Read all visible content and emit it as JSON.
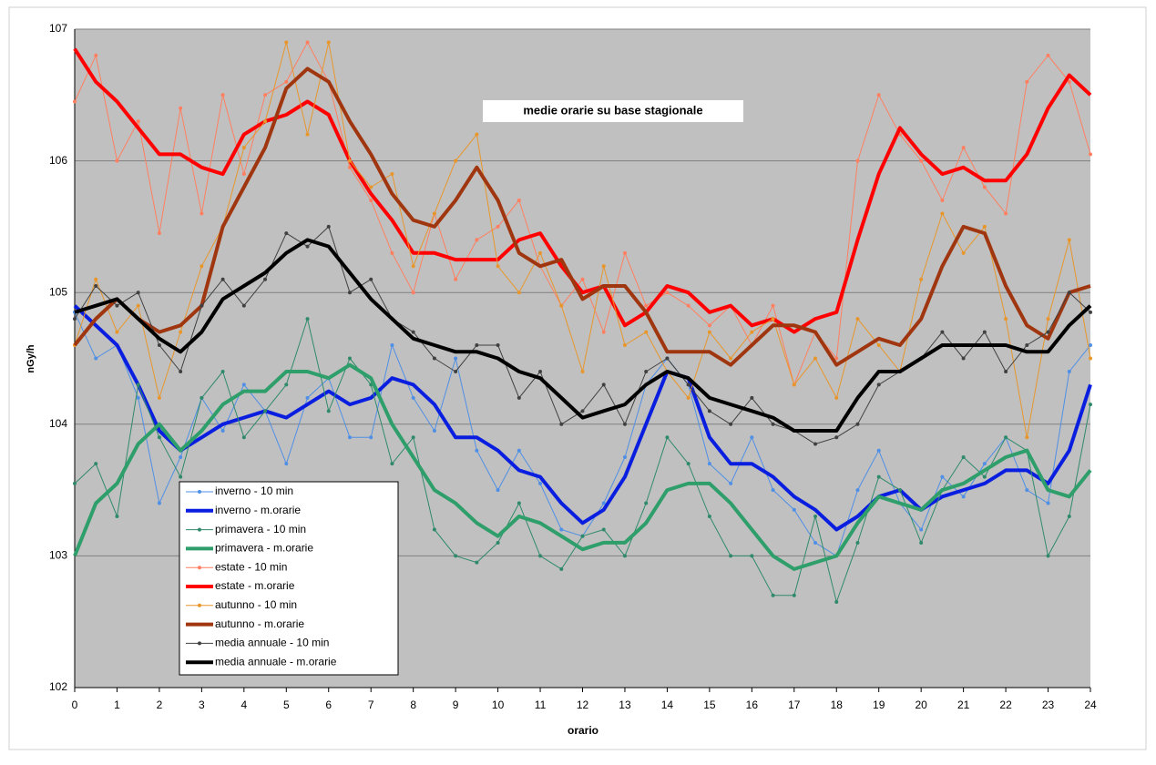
{
  "chart_data": {
    "type": "line",
    "title": "medie orarie su base stagionale",
    "xlabel": "orario",
    "ylabel": "nGy/h",
    "xlim": [
      0,
      24
    ],
    "xticks": [
      0,
      1,
      2,
      3,
      4,
      5,
      6,
      7,
      8,
      9,
      10,
      11,
      12,
      13,
      14,
      15,
      16,
      17,
      18,
      19,
      20,
      21,
      22,
      23,
      24
    ],
    "ylim": [
      102,
      107
    ],
    "yticks": [
      102,
      103,
      104,
      105,
      106,
      107
    ],
    "grid": true,
    "legend": "lower-left",
    "x": [
      0,
      0.5,
      1,
      1.5,
      2,
      2.5,
      3,
      3.5,
      4,
      4.5,
      5,
      5.5,
      6,
      6.5,
      7,
      7.5,
      8,
      8.5,
      9,
      9.5,
      10,
      10.5,
      11,
      11.5,
      12,
      12.5,
      13,
      13.5,
      14,
      14.5,
      15,
      15.5,
      16,
      16.5,
      17,
      17.5,
      18,
      18.5,
      19,
      19.5,
      20,
      20.5,
      21,
      21.5,
      22,
      22.5,
      23,
      23.5,
      24
    ],
    "series": [
      {
        "name": "inverno - 10 min",
        "color": "#4f8fe6",
        "markers": true,
        "values": [
          104.85,
          104.5,
          104.6,
          104.2,
          103.4,
          103.75,
          104.2,
          103.95,
          104.3,
          104.1,
          103.7,
          104.2,
          104.35,
          103.9,
          103.9,
          104.6,
          104.2,
          103.95,
          104.5,
          103.8,
          103.5,
          103.8,
          103.55,
          103.2,
          103.15,
          103.4,
          103.75,
          104.3,
          104.5,
          104.3,
          103.7,
          103.55,
          103.9,
          103.5,
          103.35,
          103.1,
          103.0,
          103.5,
          103.8,
          103.4,
          103.2,
          103.6,
          103.45,
          103.7,
          103.9,
          103.5,
          103.4,
          104.4,
          104.6
        ]
      },
      {
        "name": "inverno - m.orarie",
        "color": "#0a1ee0",
        "markers": false,
        "values": [
          104.9,
          104.75,
          104.6,
          104.3,
          103.95,
          103.8,
          103.9,
          104.0,
          104.05,
          104.1,
          104.05,
          104.15,
          104.25,
          104.15,
          104.2,
          104.35,
          104.3,
          104.15,
          103.9,
          103.9,
          103.8,
          103.65,
          103.6,
          103.4,
          103.25,
          103.35,
          103.6,
          104.0,
          104.4,
          104.35,
          103.9,
          103.7,
          103.7,
          103.6,
          103.45,
          103.35,
          103.2,
          103.3,
          103.45,
          103.5,
          103.35,
          103.45,
          103.5,
          103.55,
          103.65,
          103.65,
          103.55,
          103.8,
          104.3
        ]
      },
      {
        "name": "primavera - 10 min",
        "color": "#2f8a6a",
        "markers": true,
        "values": [
          103.55,
          103.7,
          103.3,
          104.3,
          103.9,
          103.6,
          104.2,
          104.4,
          103.9,
          104.1,
          104.3,
          104.8,
          104.1,
          104.5,
          104.3,
          103.7,
          103.9,
          103.2,
          103.0,
          102.95,
          103.1,
          103.4,
          103.0,
          102.9,
          103.15,
          103.2,
          103.0,
          103.4,
          103.9,
          103.7,
          103.3,
          103.0,
          103.0,
          102.7,
          102.7,
          103.3,
          102.65,
          103.1,
          103.6,
          103.5,
          103.1,
          103.5,
          103.75,
          103.6,
          103.9,
          103.8,
          103.0,
          103.3,
          104.15
        ]
      },
      {
        "name": "primavera - m.orarie",
        "color": "#2e9e6a",
        "markers": false,
        "values": [
          103.0,
          103.4,
          103.55,
          103.85,
          104.0,
          103.8,
          103.95,
          104.15,
          104.25,
          104.25,
          104.4,
          104.4,
          104.35,
          104.45,
          104.35,
          104.0,
          103.75,
          103.5,
          103.4,
          103.25,
          103.15,
          103.3,
          103.25,
          103.15,
          103.05,
          103.1,
          103.1,
          103.25,
          103.5,
          103.55,
          103.55,
          103.4,
          103.2,
          103.0,
          102.9,
          102.95,
          103.0,
          103.25,
          103.45,
          103.4,
          103.35,
          103.5,
          103.55,
          103.65,
          103.75,
          103.8,
          103.5,
          103.45,
          103.65
        ]
      },
      {
        "name": "estate - 10 min",
        "color": "#ff7f60",
        "markers": true,
        "values": [
          106.45,
          106.8,
          106.0,
          106.3,
          105.45,
          106.4,
          105.6,
          106.5,
          105.9,
          106.5,
          106.6,
          106.9,
          106.6,
          105.95,
          105.7,
          105.3,
          105.0,
          105.6,
          105.1,
          105.4,
          105.5,
          105.7,
          105.2,
          104.9,
          105.1,
          104.7,
          105.3,
          104.9,
          105.0,
          104.9,
          104.75,
          104.9,
          104.6,
          104.9,
          104.3,
          104.7,
          104.5,
          106.0,
          106.5,
          106.2,
          106.0,
          105.7,
          106.1,
          105.8,
          105.6,
          106.6,
          106.8,
          106.6,
          106.05
        ]
      },
      {
        "name": "estate - m.orarie",
        "color": "#ff0000",
        "markers": false,
        "values": [
          106.85,
          106.6,
          106.45,
          106.25,
          106.05,
          106.05,
          105.95,
          105.9,
          106.2,
          106.3,
          106.35,
          106.45,
          106.35,
          106.0,
          105.75,
          105.55,
          105.3,
          105.3,
          105.25,
          105.25,
          105.25,
          105.4,
          105.45,
          105.2,
          105.0,
          105.05,
          104.75,
          104.85,
          105.05,
          105.0,
          104.85,
          104.9,
          104.75,
          104.8,
          104.7,
          104.8,
          104.85,
          105.4,
          105.9,
          106.25,
          106.05,
          105.9,
          105.95,
          105.85,
          105.85,
          106.05,
          106.4,
          106.65,
          106.5
        ]
      },
      {
        "name": "autunno - 10 min",
        "color": "#e8962b",
        "markers": true,
        "values": [
          104.6,
          105.1,
          104.7,
          104.9,
          104.2,
          104.7,
          105.2,
          105.5,
          106.1,
          106.3,
          106.9,
          106.2,
          106.9,
          106.0,
          105.8,
          105.9,
          105.2,
          105.6,
          106.0,
          106.2,
          105.2,
          105.0,
          105.3,
          104.9,
          104.4,
          105.2,
          104.6,
          104.7,
          104.4,
          104.2,
          104.7,
          104.5,
          104.7,
          104.8,
          104.3,
          104.5,
          104.2,
          104.8,
          104.6,
          104.4,
          105.1,
          105.6,
          105.3,
          105.5,
          104.8,
          103.9,
          104.8,
          105.4,
          104.5
        ]
      },
      {
        "name": "autunno - m.orarie",
        "color": "#a0360f",
        "markers": false,
        "values": [
          104.6,
          104.8,
          104.95,
          104.8,
          104.7,
          104.75,
          104.9,
          105.5,
          105.8,
          106.1,
          106.55,
          106.7,
          106.6,
          106.3,
          106.05,
          105.75,
          105.55,
          105.5,
          105.7,
          105.95,
          105.7,
          105.3,
          105.2,
          105.25,
          104.95,
          105.05,
          105.05,
          104.85,
          104.55,
          104.55,
          104.55,
          104.45,
          104.6,
          104.75,
          104.75,
          104.7,
          104.45,
          104.55,
          104.65,
          104.6,
          104.8,
          105.2,
          105.5,
          105.45,
          105.05,
          104.75,
          104.65,
          105.0,
          105.05
        ]
      },
      {
        "name": "media annuale - 10 min",
        "color": "#404040",
        "markers": true,
        "values": [
          104.8,
          105.05,
          104.9,
          105.0,
          104.6,
          104.4,
          104.9,
          105.1,
          104.9,
          105.1,
          105.45,
          105.35,
          105.5,
          105.0,
          105.1,
          104.8,
          104.7,
          104.5,
          104.4,
          104.6,
          104.6,
          104.2,
          104.4,
          104.0,
          104.1,
          104.3,
          104.0,
          104.4,
          104.5,
          104.3,
          104.1,
          104.0,
          104.2,
          104.0,
          103.95,
          103.85,
          103.9,
          104.0,
          104.3,
          104.4,
          104.5,
          104.7,
          104.5,
          104.7,
          104.4,
          104.6,
          104.7,
          105.0,
          104.85
        ]
      },
      {
        "name": "media annuale - m.orarie",
        "color": "#000000",
        "markers": false,
        "values": [
          104.85,
          104.9,
          104.95,
          104.8,
          104.65,
          104.55,
          104.7,
          104.95,
          105.05,
          105.15,
          105.3,
          105.4,
          105.35,
          105.15,
          104.95,
          104.8,
          104.65,
          104.6,
          104.55,
          104.55,
          104.5,
          104.4,
          104.35,
          104.2,
          104.05,
          104.1,
          104.15,
          104.3,
          104.4,
          104.35,
          104.2,
          104.15,
          104.1,
          104.05,
          103.95,
          103.95,
          103.95,
          104.2,
          104.4,
          104.4,
          104.5,
          104.6,
          104.6,
          104.6,
          104.6,
          104.55,
          104.55,
          104.75,
          104.9
        ]
      }
    ]
  }
}
